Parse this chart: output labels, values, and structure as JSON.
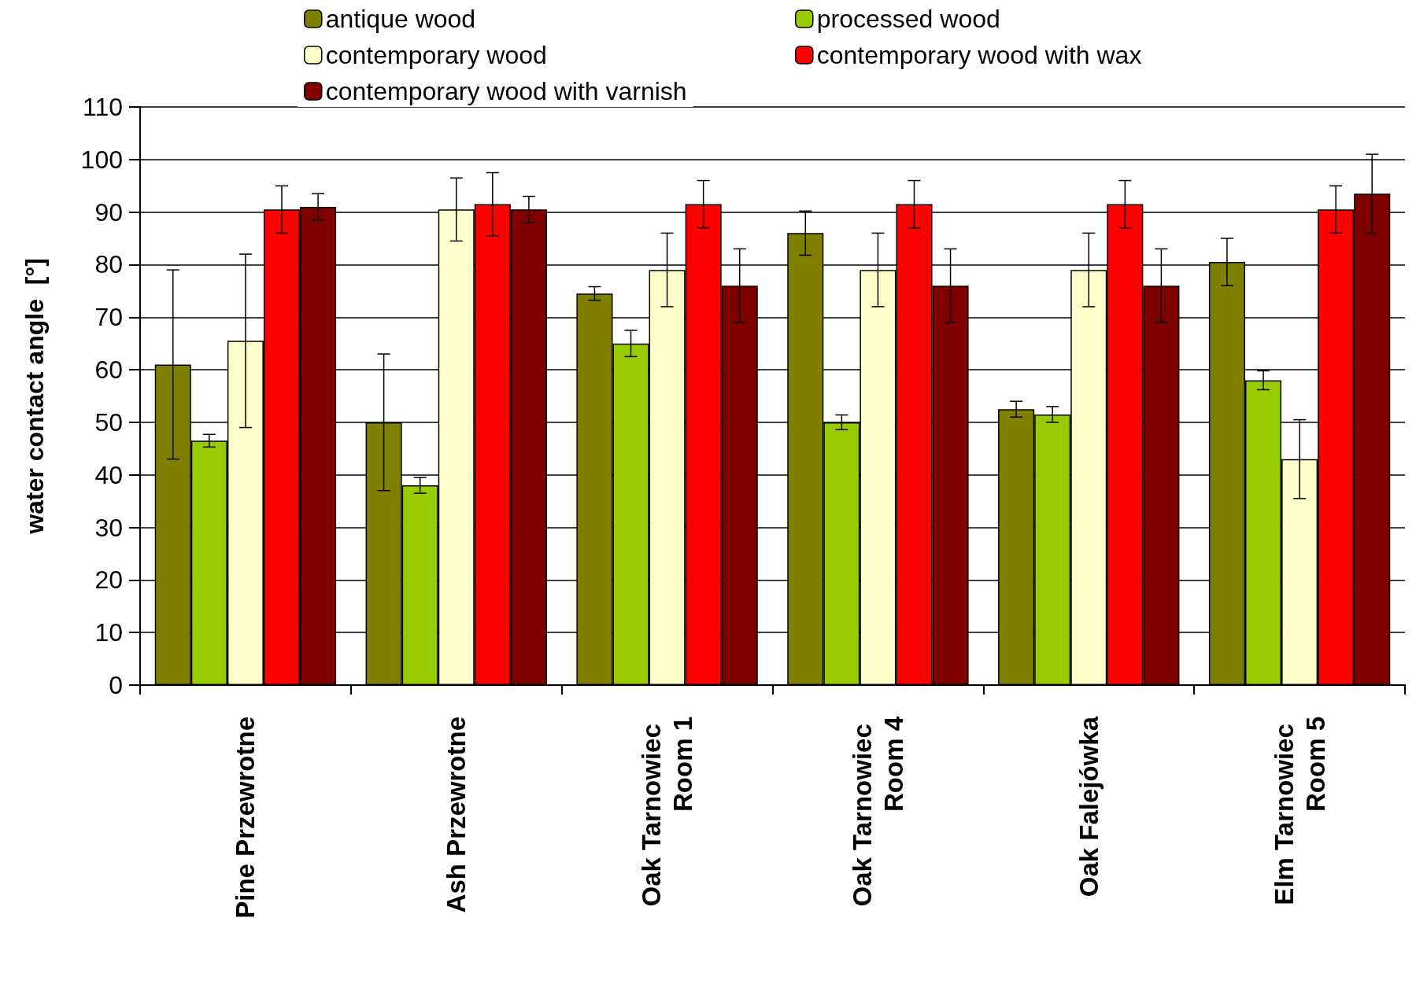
{
  "chart_data": {
    "type": "bar",
    "ylabel": "water contact angle  [°]",
    "categories": [
      "Pine Przewrotne",
      "Ash Przewrotne",
      "Oak Tarnowiec Room 1",
      "Oak Tarnowiec Room 4",
      "Oak Falejówka",
      "Elm Tarnowiec Room 5"
    ],
    "series": [
      {
        "name": "antique wood",
        "color": "#808000",
        "values": [
          61,
          50,
          74.5,
          86,
          52.5,
          80.5
        ],
        "errors": [
          18,
          13,
          1.3,
          4.2,
          1.5,
          4.5
        ]
      },
      {
        "name": "processed wood",
        "color": "#99cc00",
        "values": [
          46.5,
          38,
          65,
          50,
          51.5,
          58
        ],
        "errors": [
          1.2,
          1.5,
          2.5,
          1.4,
          1.5,
          1.8
        ]
      },
      {
        "name": "contemporary wood",
        "color": "#ffffcc",
        "values": [
          65.5,
          90.5,
          79,
          79,
          79,
          43
        ],
        "errors": [
          16.5,
          6,
          7,
          7,
          7,
          7.5
        ]
      },
      {
        "name": "contemporary wood with wax",
        "color": "#ff0000",
        "values": [
          90.5,
          91.5,
          91.5,
          91.5,
          91.5,
          90.5
        ],
        "errors": [
          4.5,
          6,
          4.5,
          4.5,
          4.5,
          4.5
        ]
      },
      {
        "name": "contemporary wood with varnish",
        "color": "#800000",
        "values": [
          91,
          90.5,
          76,
          76,
          76,
          93.5
        ],
        "errors": [
          2.5,
          2.5,
          7,
          7,
          7,
          7.5
        ]
      }
    ],
    "ylim": [
      0,
      110
    ],
    "yticks": [
      0,
      10,
      20,
      30,
      40,
      50,
      60,
      70,
      80,
      90,
      100,
      110
    ],
    "grid": "y",
    "legend": "top"
  }
}
